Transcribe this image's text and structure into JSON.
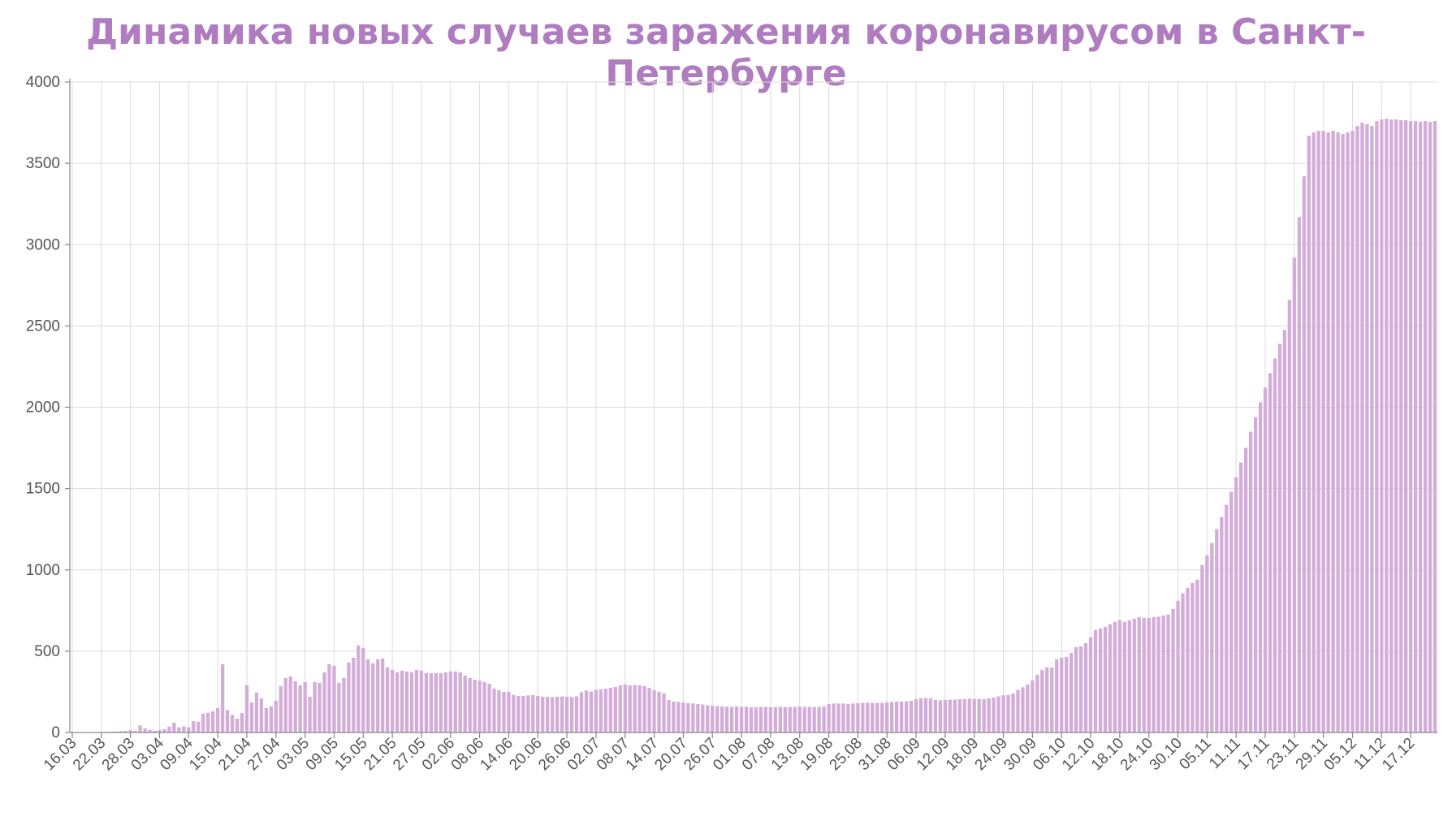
{
  "chart_data": {
    "type": "bar",
    "title": "Динамика новых случаев заражения коронавирусом в Санкт-Петербурге",
    "xlabel": "",
    "ylabel": "",
    "ylim": [
      0,
      4000
    ],
    "yticks": [
      "0",
      "500",
      "1000",
      "1500",
      "2000",
      "2500",
      "3000",
      "3500",
      "4000"
    ],
    "x_start": "16.03",
    "x_tick_every_days": 6,
    "x_tick_labels": [
      "16.03",
      "22.03",
      "28.03",
      "03.04",
      "09.04",
      "15.04",
      "21.04",
      "27.04",
      "03.05",
      "09.05",
      "15.05",
      "21.05",
      "27.05",
      "02.06",
      "08.06",
      "14.06",
      "20.06",
      "26.06",
      "02.07",
      "08.07",
      "14.07",
      "20.07",
      "26.07",
      "01.08",
      "07.08",
      "13.08",
      "19.08",
      "25.08",
      "31.08",
      "06.09",
      "12.09",
      "18.09",
      "24.09",
      "30.09",
      "06.10",
      "12.10",
      "18.10",
      "24.10",
      "30.10",
      "05.11",
      "11.11",
      "17.11",
      "23.11",
      "29.11",
      "05.12",
      "11.12",
      "17.12"
    ],
    "grid": true,
    "bar_color": "#d4acd9",
    "values": [
      1,
      1,
      1,
      2,
      2,
      2,
      3,
      4,
      5,
      6,
      8,
      10,
      14,
      10,
      43,
      25,
      16,
      10,
      15,
      20,
      36,
      60,
      32,
      38,
      32,
      70,
      66,
      115,
      121,
      130,
      150,
      420,
      138,
      108,
      85,
      120,
      290,
      185,
      246,
      210,
      150,
      160,
      195,
      285,
      335,
      345,
      315,
      290,
      310,
      220,
      310,
      305,
      370,
      420,
      410,
      305,
      335,
      430,
      460,
      535,
      520,
      450,
      425,
      450,
      455,
      400,
      385,
      370,
      380,
      375,
      370,
      385,
      380,
      365,
      365,
      365,
      365,
      370,
      375,
      375,
      370,
      350,
      335,
      325,
      318,
      310,
      300,
      270,
      260,
      250,
      250,
      232,
      225,
      225,
      228,
      230,
      225,
      220,
      218,
      218,
      220,
      222,
      220,
      218,
      222,
      248,
      258,
      252,
      262,
      265,
      270,
      275,
      280,
      290,
      295,
      290,
      292,
      290,
      285,
      275,
      260,
      250,
      240,
      200,
      190,
      188,
      185,
      180,
      178,
      175,
      172,
      168,
      165,
      162,
      160,
      158,
      158,
      160,
      158,
      158,
      155,
      156,
      157,
      158,
      155,
      156,
      158,
      156,
      157,
      158,
      160,
      158,
      158,
      157,
      158,
      160,
      175,
      178,
      178,
      178,
      176,
      178,
      180,
      182,
      183,
      182,
      182,
      182,
      185,
      188,
      190,
      190,
      192,
      195,
      205,
      210,
      212,
      210,
      200,
      198,
      200,
      202,
      202,
      205,
      205,
      208,
      206,
      206,
      205,
      210,
      215,
      222,
      228,
      230,
      240,
      262,
      278,
      295,
      320,
      355,
      385,
      400,
      400,
      450,
      460,
      465,
      490,
      525,
      530,
      550,
      585,
      630,
      640,
      650,
      665,
      680,
      690,
      680,
      690,
      700,
      710,
      705,
      705,
      710,
      712,
      720,
      725,
      760,
      810,
      855,
      890,
      920,
      940,
      1030,
      1090,
      1165,
      1250,
      1325,
      1400,
      1480,
      1570,
      1660,
      1750,
      1850,
      1940,
      2030,
      2120,
      2210,
      2300,
      2390,
      2475,
      2660,
      2920,
      3170,
      3420,
      3670,
      3690,
      3700,
      3700,
      3690,
      3700,
      3690,
      3680,
      3690,
      3700,
      3730,
      3750,
      3740,
      3730,
      3760,
      3770,
      3775,
      3770,
      3770,
      3765,
      3765,
      3760,
      3760,
      3755,
      3760,
      3755,
      3760
    ]
  }
}
